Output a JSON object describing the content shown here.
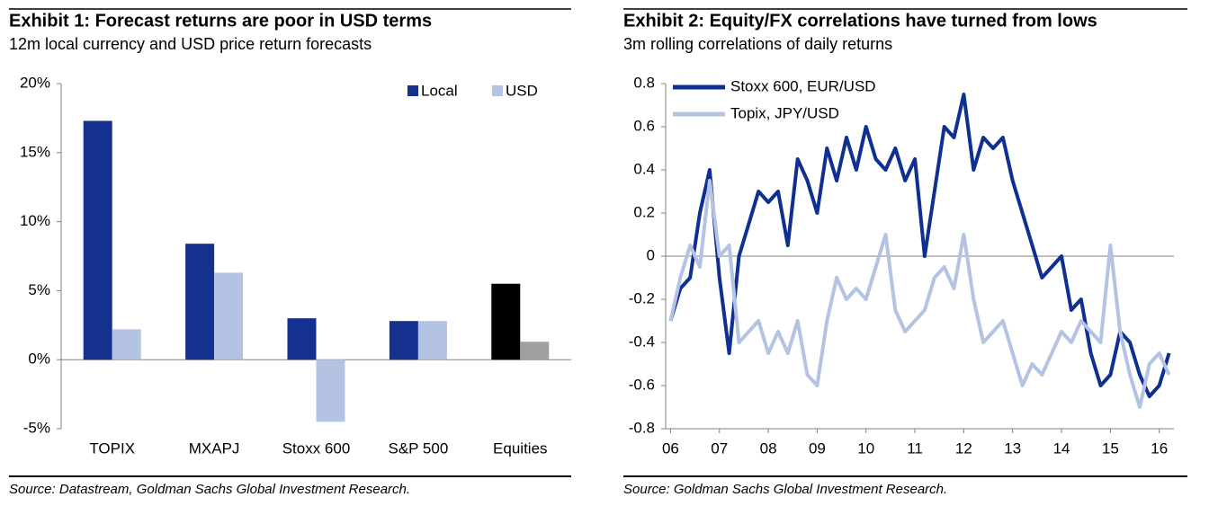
{
  "chart_data": [
    {
      "type": "bar",
      "title": "Exhibit 1: Forecast returns are poor in USD terms",
      "subtitle": "12m local currency and USD price return forecasts",
      "source": "Source: Datastream, Goldman Sachs Global Investment Research.",
      "categories": [
        "TOPIX",
        "MXAPJ",
        "Stoxx 600",
        "S&P 500",
        "Equities"
      ],
      "series": [
        {
          "name": "Local",
          "color": "#14318f",
          "point_colors": [
            "#14318f",
            "#14318f",
            "#14318f",
            "#14318f",
            "#000000"
          ],
          "values": [
            17.3,
            8.4,
            3.0,
            2.8,
            5.5
          ]
        },
        {
          "name": "USD",
          "color": "#b4c3e1",
          "point_colors": [
            "#b4c3e1",
            "#b4c3e1",
            "#b4c3e1",
            "#b4c3e1",
            "#a0a0a0"
          ],
          "values": [
            2.2,
            6.3,
            -4.5,
            2.8,
            1.3
          ]
        }
      ],
      "ylim": [
        -5,
        20
      ],
      "yticks": [
        {
          "value": -5,
          "label": "-5%"
        },
        {
          "value": 0,
          "label": "0%"
        },
        {
          "value": 5,
          "label": "5%"
        },
        {
          "value": 10,
          "label": "10%"
        },
        {
          "value": 15,
          "label": "15%"
        },
        {
          "value": 20,
          "label": "20%"
        }
      ],
      "legend": "top-right"
    },
    {
      "type": "line",
      "title": "Exhibit 2: Equity/FX correlations have turned from lows",
      "subtitle": "3m rolling correlations of daily returns",
      "source": "Source: Goldman Sachs Global Investment Research.",
      "x": [
        6.0,
        6.2,
        6.4,
        6.6,
        6.8,
        7.0,
        7.2,
        7.4,
        7.6,
        7.8,
        8.0,
        8.2,
        8.4,
        8.6,
        8.8,
        9.0,
        9.2,
        9.4,
        9.6,
        9.8,
        10.0,
        10.2,
        10.4,
        10.6,
        10.8,
        11.0,
        11.2,
        11.4,
        11.6,
        11.8,
        12.0,
        12.2,
        12.4,
        12.6,
        12.8,
        13.0,
        13.2,
        13.4,
        13.6,
        13.8,
        14.0,
        14.2,
        14.4,
        14.6,
        14.8,
        15.0,
        15.2,
        15.4,
        15.6,
        15.8,
        16.0,
        16.2
      ],
      "series": [
        {
          "name": "Stoxx 600, EUR/USD",
          "color": "#0f2f91",
          "values": [
            -0.3,
            -0.15,
            -0.1,
            0.2,
            0.4,
            -0.1,
            -0.45,
            0.0,
            0.15,
            0.3,
            0.25,
            0.3,
            0.05,
            0.45,
            0.35,
            0.2,
            0.5,
            0.35,
            0.55,
            0.4,
            0.6,
            0.45,
            0.4,
            0.5,
            0.35,
            0.45,
            0.0,
            0.3,
            0.6,
            0.55,
            0.75,
            0.4,
            0.55,
            0.5,
            0.55,
            0.35,
            0.2,
            0.05,
            -0.1,
            -0.05,
            0.0,
            -0.25,
            -0.2,
            -0.45,
            -0.6,
            -0.55,
            -0.35,
            -0.4,
            -0.55,
            -0.65,
            -0.6,
            -0.45
          ]
        },
        {
          "name": "Topix, JPY/USD",
          "color": "#b4c3e1",
          "values": [
            -0.3,
            -0.1,
            0.05,
            -0.05,
            0.35,
            0.0,
            0.05,
            -0.4,
            -0.35,
            -0.3,
            -0.45,
            -0.35,
            -0.45,
            -0.3,
            -0.55,
            -0.6,
            -0.3,
            -0.1,
            -0.2,
            -0.15,
            -0.2,
            -0.05,
            0.1,
            -0.25,
            -0.35,
            -0.3,
            -0.25,
            -0.1,
            -0.05,
            -0.15,
            0.1,
            -0.2,
            -0.4,
            -0.35,
            -0.3,
            -0.45,
            -0.6,
            -0.5,
            -0.55,
            -0.45,
            -0.35,
            -0.4,
            -0.3,
            -0.35,
            -0.4,
            0.05,
            -0.35,
            -0.55,
            -0.7,
            -0.5,
            -0.45,
            -0.55
          ]
        }
      ],
      "xlim": [
        5.9,
        16.3
      ],
      "xticks": [
        {
          "value": 6,
          "label": "06"
        },
        {
          "value": 7,
          "label": "07"
        },
        {
          "value": 8,
          "label": "08"
        },
        {
          "value": 9,
          "label": "09"
        },
        10,
        11,
        12,
        13,
        14,
        15,
        16
      ],
      "ylim": [
        -0.8,
        0.8
      ],
      "yticks": [
        -0.8,
        -0.6,
        -0.4,
        -0.2,
        0,
        0.2,
        0.4,
        0.6,
        0.8
      ],
      "legend": "top-left"
    }
  ]
}
